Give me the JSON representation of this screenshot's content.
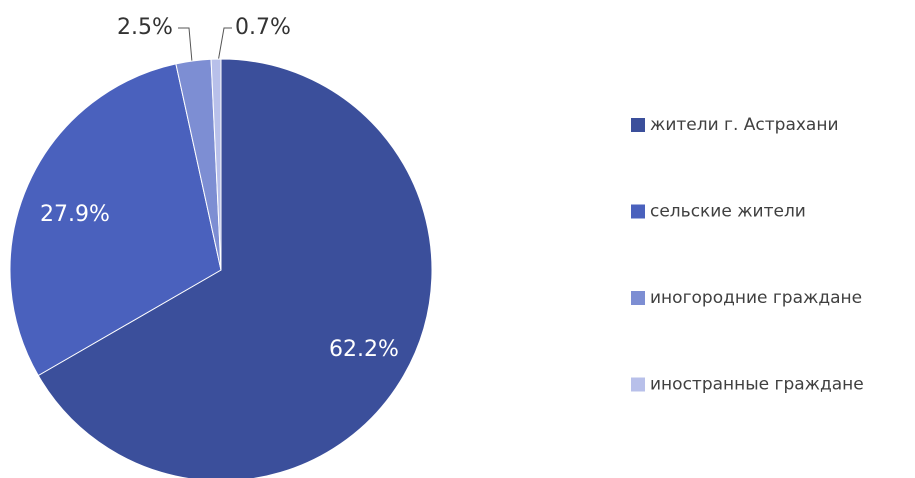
{
  "chart_data": {
    "type": "pie",
    "categories": [
      "жители г. Астрахани",
      "сельские жители",
      "иногородние граждане",
      "иностранные граждане"
    ],
    "values": [
      62.2,
      27.9,
      2.5,
      0.7
    ],
    "value_labels": [
      "62.2%",
      "27.9%",
      "2.5%",
      "0.7%"
    ],
    "colors": [
      "#3b4f9b",
      "#4a61bd",
      "#7d8ed3",
      "#b8c0ea"
    ],
    "legend": "right"
  }
}
